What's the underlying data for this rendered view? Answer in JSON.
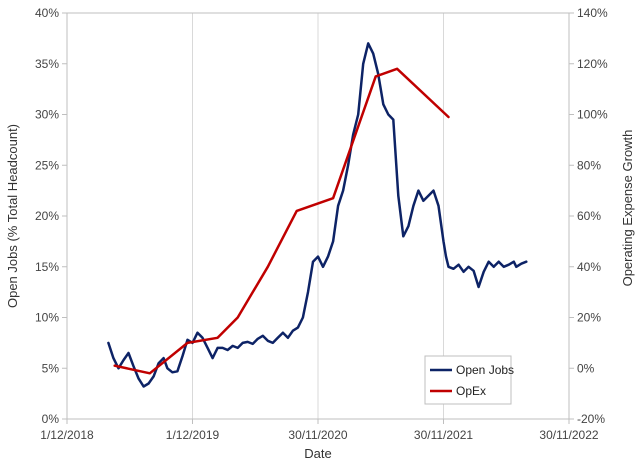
{
  "chart_data": {
    "type": "line",
    "xlabel": "Date",
    "x_tick_labels": [
      "1/12/2018",
      "1/12/2019",
      "30/11/2020",
      "30/11/2021",
      "30/11/2022"
    ],
    "x_tick_years": [
      2018.92,
      2019.92,
      2020.92,
      2021.92,
      2022.92
    ],
    "xlim": [
      2018.92,
      2022.92
    ],
    "y_left": {
      "label": "Open Jobs (% Total Headcount)",
      "ylim": [
        0,
        40
      ],
      "ticks": [
        0,
        5,
        10,
        15,
        20,
        25,
        30,
        35,
        40
      ],
      "tick_labels": [
        "0%",
        "5%",
        "10%",
        "15%",
        "20%",
        "25%",
        "30%",
        "35%",
        "40%"
      ]
    },
    "y_right": {
      "label": "Operating Expense Growth",
      "ylim": [
        -20,
        140
      ],
      "ticks": [
        -20,
        0,
        20,
        40,
        60,
        80,
        100,
        120,
        140
      ],
      "tick_labels": [
        "-20%",
        "0%",
        "20%",
        "40%",
        "60%",
        "80%",
        "100%",
        "120%",
        "140%"
      ]
    },
    "legend": {
      "position": "bottom-right",
      "entries": [
        "Open Jobs",
        "OpEx"
      ]
    },
    "series": [
      {
        "name": "Open Jobs",
        "axis": "left",
        "color": "#0d2366",
        "x": [
          2019.25,
          2019.29,
          2019.33,
          2019.37,
          2019.41,
          2019.45,
          2019.49,
          2019.53,
          2019.57,
          2019.61,
          2019.65,
          2019.69,
          2019.72,
          2019.76,
          2019.8,
          2019.84,
          2019.88,
          2019.92,
          2019.96,
          2020.0,
          2020.04,
          2020.08,
          2020.1,
          2020.12,
          2020.16,
          2020.2,
          2020.24,
          2020.28,
          2020.32,
          2020.36,
          2020.4,
          2020.44,
          2020.48,
          2020.52,
          2020.56,
          2020.6,
          2020.64,
          2020.68,
          2020.72,
          2020.76,
          2020.8,
          2020.84,
          2020.88,
          2020.92,
          2020.96,
          2021.0,
          2021.04,
          2021.08,
          2021.12,
          2021.16,
          2021.2,
          2021.24,
          2021.28,
          2021.32,
          2021.36,
          2021.4,
          2021.44,
          2021.48,
          2021.52,
          2021.56,
          2021.6,
          2021.64,
          2021.68,
          2021.72,
          2021.76,
          2021.8,
          2021.84,
          2021.88,
          2021.92,
          2021.94,
          2021.96,
          2022.0,
          2022.04,
          2022.08,
          2022.12,
          2022.16,
          2022.2,
          2022.24,
          2022.28,
          2022.32,
          2022.36,
          2022.4,
          2022.44,
          2022.48,
          2022.5,
          2022.54,
          2022.58
        ],
        "values": [
          7.5,
          6.0,
          5.0,
          5.8,
          6.5,
          5.2,
          4.0,
          3.2,
          3.5,
          4.2,
          5.5,
          6.0,
          5.0,
          4.6,
          4.7,
          6.2,
          7.8,
          7.5,
          8.5,
          8.0,
          7.0,
          6.0,
          6.5,
          7.0,
          7.0,
          6.8,
          7.2,
          7.0,
          7.5,
          7.6,
          7.4,
          7.9,
          8.2,
          7.7,
          7.5,
          8.0,
          8.5,
          8.0,
          8.7,
          9.0,
          10.0,
          12.5,
          15.5,
          16.0,
          15.0,
          16.0,
          17.5,
          21.0,
          22.5,
          25.0,
          28.0,
          30.0,
          35.0,
          37.0,
          36.0,
          34.0,
          31.0,
          30.0,
          29.5,
          22.0,
          18.0,
          19.0,
          21.0,
          22.5,
          21.5,
          22.0,
          22.5,
          21.0,
          17.5,
          16.0,
          15.0,
          14.8,
          15.2,
          14.5,
          15.0,
          14.6,
          13.0,
          14.5,
          15.5,
          15.0,
          15.5,
          15.0,
          15.2,
          15.5,
          15.0,
          15.3,
          15.5
        ]
      },
      {
        "name": "OpEx",
        "axis": "right",
        "color": "#c00000",
        "x": [
          2019.3,
          2019.58,
          2019.88,
          2020.12,
          2020.28,
          2020.52,
          2020.75,
          2021.04,
          2021.38,
          2021.55,
          2021.96
        ],
        "values": [
          1,
          -2,
          10,
          12,
          20,
          40,
          62,
          67,
          115,
          118,
          99
        ]
      }
    ]
  }
}
